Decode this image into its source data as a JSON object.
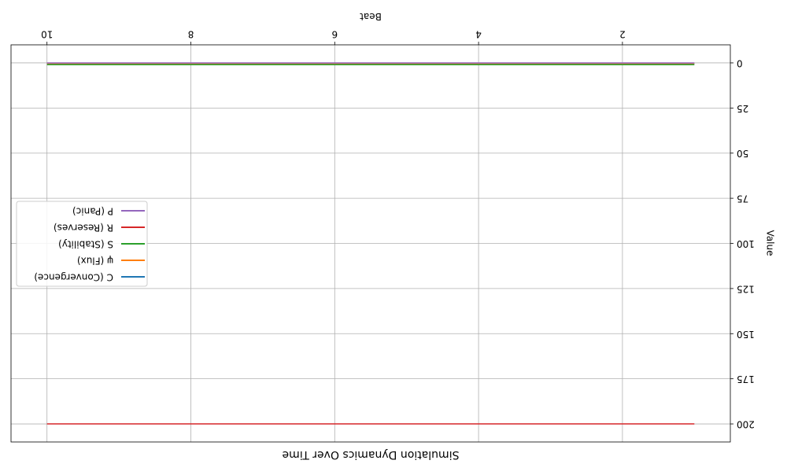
{
  "chart_data": {
    "type": "line",
    "title": "Simulation Dynamics Over Time",
    "xlabel": "Beat",
    "ylabel": "Value",
    "xlim": [
      0.5,
      10.5
    ],
    "ylim": [
      210,
      -10
    ],
    "x_axis_inverted": true,
    "y_axis_inverted": true,
    "figure_rotated_180": true,
    "grid": true,
    "legend_position": "center-left",
    "x_ticks": [
      2,
      4,
      6,
      8,
      10
    ],
    "x_tick_labels": [
      "2",
      "4",
      "6",
      "8",
      "10"
    ],
    "y_ticks": [
      0,
      25,
      50,
      75,
      100,
      125,
      150,
      175,
      200
    ],
    "y_tick_labels": [
      "0",
      "25",
      "50",
      "75",
      "100",
      "125",
      "150",
      "175",
      "200"
    ],
    "x": [
      1,
      2,
      3,
      4,
      5,
      6,
      7,
      8,
      9,
      10
    ],
    "series": [
      {
        "name": "C (Convergence)",
        "color": "#1f77b4",
        "values": [
          0.5,
          0.5,
          0.5,
          0.5,
          0.5,
          0.5,
          0.5,
          0.5,
          0.5,
          0.5
        ]
      },
      {
        "name": "ψ (Flux)",
        "color": "#ff7f0e",
        "values": [
          0.3,
          0.3,
          0.3,
          0.3,
          0.3,
          0.3,
          0.3,
          0.3,
          0.3,
          0.3
        ]
      },
      {
        "name": "S (Stability)",
        "color": "#2ca02c",
        "values": [
          1,
          1,
          1,
          1,
          1,
          1,
          1,
          1,
          1,
          1
        ]
      },
      {
        "name": "R (Reserves)",
        "color": "#d62728",
        "values": [
          200,
          200,
          200,
          200,
          200,
          200,
          200,
          200,
          200,
          200
        ]
      },
      {
        "name": "P (Panic)",
        "color": "#9467bd",
        "values": [
          0,
          0,
          0,
          0,
          0,
          0,
          0,
          0,
          0,
          0
        ]
      }
    ]
  }
}
